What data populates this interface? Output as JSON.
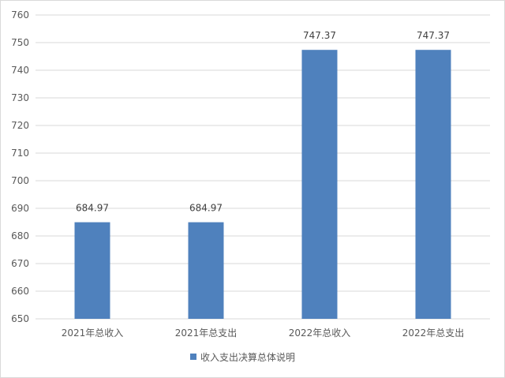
{
  "chart_data": {
    "type": "bar",
    "title": "",
    "xlabel": "",
    "ylabel": "",
    "categories": [
      "2021年总收入",
      "2021年总支出",
      "2022年总收入",
      "2022年总支出"
    ],
    "series": [
      {
        "name": "收入支出决算总体说明",
        "values": [
          684.97,
          684.97,
          747.37,
          747.37
        ],
        "value_labels": [
          "684.97",
          "684.97",
          "747.37",
          "747.37"
        ],
        "color": "#4f81bd"
      }
    ],
    "ylim": [
      650,
      760
    ],
    "yticks": [
      650,
      660,
      670,
      680,
      690,
      700,
      710,
      720,
      730,
      740,
      750,
      760
    ],
    "grid": true,
    "legend_position": "bottom",
    "colors": {
      "bar": "#4f81bd",
      "grid": "#d9d9d9",
      "axis_text": "#595959"
    }
  }
}
